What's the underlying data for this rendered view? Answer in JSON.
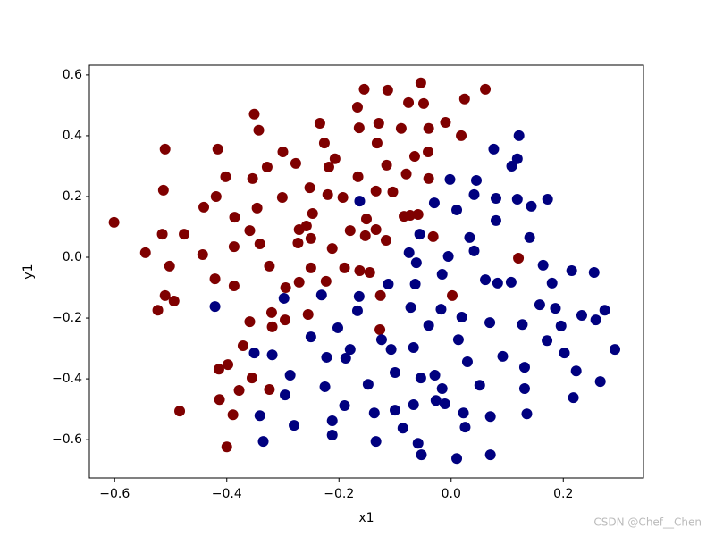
{
  "chart_data": {
    "type": "scatter",
    "x_label": "x1",
    "y_label": "y1",
    "watermark": "CSDN @Chef__Chen",
    "xlim": [
      -0.645,
      0.343
    ],
    "ylim": [
      -0.726,
      0.632
    ],
    "xticks": [
      {
        "value": -0.6,
        "label": "−0.6"
      },
      {
        "value": -0.4,
        "label": "−0.4"
      },
      {
        "value": -0.2,
        "label": "−0.2"
      },
      {
        "value": 0,
        "label": "0.0"
      },
      0.2
    ],
    "yticks": [
      {
        "value": -0.6,
        "label": "−0.6"
      },
      {
        "value": -0.4,
        "label": "−0.4"
      },
      {
        "value": -0.2,
        "label": "−0.2"
      },
      {
        "value": 0,
        "label": "0.0"
      },
      0.2,
      0.4,
      0.6
    ],
    "series": [
      {
        "color": "#7f0000",
        "x": [
          -0.601,
          -0.545,
          -0.51,
          -0.513,
          -0.515,
          -0.502,
          -0.476,
          -0.51,
          -0.523,
          -0.494,
          -0.484,
          -0.441,
          -0.443,
          -0.419,
          -0.416,
          -0.421,
          -0.414,
          -0.413,
          -0.402,
          -0.4,
          -0.398,
          -0.387,
          -0.387,
          -0.386,
          -0.389,
          -0.378,
          -0.371,
          -0.354,
          -0.359,
          -0.359,
          -0.355,
          -0.351,
          -0.343,
          -0.346,
          -0.341,
          -0.328,
          -0.324,
          -0.32,
          -0.319,
          -0.324,
          -0.301,
          -0.3,
          -0.295,
          -0.296,
          -0.277,
          -0.273,
          -0.271,
          -0.271,
          -0.258,
          -0.255,
          -0.252,
          -0.25,
          -0.25,
          -0.247,
          -0.234,
          -0.226,
          -0.223,
          -0.22,
          -0.218,
          -0.212,
          -0.207,
          -0.193,
          -0.19,
          -0.18,
          -0.167,
          -0.164,
          -0.166,
          -0.163,
          -0.155,
          -0.151,
          -0.153,
          -0.145,
          -0.134,
          -0.132,
          -0.134,
          -0.129,
          -0.127,
          -0.126,
          -0.116,
          -0.115,
          -0.113,
          -0.104,
          -0.089,
          -0.084,
          -0.08,
          -0.076,
          -0.073,
          -0.065,
          -0.059,
          -0.054,
          -0.049,
          -0.041,
          -0.04,
          -0.04,
          -0.032,
          -0.01,
          0.002,
          0.018,
          0.024,
          0.061,
          0.12
        ],
        "y": [
          0.115,
          0.015,
          0.356,
          0.221,
          0.076,
          -0.029,
          0.076,
          -0.126,
          -0.174,
          -0.144,
          -0.506,
          0.165,
          0.009,
          0.2,
          0.356,
          -0.071,
          -0.368,
          -0.468,
          0.265,
          -0.624,
          -0.353,
          0.035,
          -0.094,
          0.132,
          -0.518,
          -0.438,
          -0.291,
          0.259,
          0.088,
          -0.212,
          -0.397,
          0.471,
          0.418,
          0.162,
          0.044,
          0.297,
          -0.029,
          -0.182,
          -0.229,
          -0.435,
          0.197,
          0.347,
          -0.1,
          -0.206,
          0.309,
          0.047,
          0.091,
          -0.082,
          0.103,
          -0.188,
          0.229,
          0.062,
          -0.035,
          0.144,
          0.441,
          0.376,
          -0.079,
          0.206,
          0.297,
          0.029,
          0.324,
          0.197,
          -0.035,
          0.088,
          0.494,
          0.426,
          0.265,
          -0.044,
          0.553,
          0.126,
          0.071,
          -0.05,
          0.091,
          0.376,
          0.218,
          0.441,
          -0.238,
          -0.126,
          0.056,
          0.303,
          0.55,
          0.215,
          0.424,
          0.135,
          0.274,
          0.509,
          0.138,
          0.332,
          0.141,
          0.574,
          0.506,
          0.347,
          0.259,
          0.424,
          0.068,
          0.444,
          -0.126,
          0.4,
          0.521,
          0.553,
          -0.003
        ]
      },
      {
        "color": "#00007f",
        "x": [
          -0.421,
          -0.351,
          -0.335,
          -0.341,
          -0.319,
          -0.298,
          -0.296,
          -0.287,
          -0.28,
          -0.231,
          -0.25,
          -0.222,
          -0.225,
          -0.212,
          -0.212,
          -0.202,
          -0.19,
          -0.188,
          -0.18,
          -0.167,
          -0.164,
          -0.163,
          -0.148,
          -0.137,
          -0.134,
          -0.124,
          -0.112,
          -0.107,
          -0.1,
          -0.1,
          -0.086,
          -0.075,
          -0.072,
          -0.067,
          -0.067,
          -0.064,
          -0.062,
          -0.059,
          -0.056,
          -0.054,
          -0.053,
          -0.04,
          -0.03,
          -0.029,
          -0.027,
          -0.016,
          -0.018,
          -0.016,
          -0.011,
          -0.005,
          -0.002,
          0.01,
          0.013,
          0.01,
          0.019,
          0.022,
          0.025,
          0.029,
          0.033,
          0.041,
          0.045,
          0.041,
          0.051,
          0.061,
          0.07,
          0.069,
          0.07,
          0.076,
          0.08,
          0.08,
          0.083,
          0.092,
          0.107,
          0.108,
          0.118,
          0.118,
          0.121,
          0.127,
          0.131,
          0.131,
          0.135,
          0.14,
          0.143,
          0.158,
          0.164,
          0.171,
          0.172,
          0.18,
          0.186,
          0.196,
          0.202,
          0.215,
          0.218,
          0.223,
          0.233,
          0.255,
          0.258,
          0.266,
          0.274,
          0.292
        ],
        "y": [
          -0.162,
          -0.315,
          -0.606,
          -0.521,
          -0.321,
          -0.135,
          -0.453,
          -0.388,
          -0.553,
          -0.124,
          -0.262,
          -0.329,
          -0.426,
          -0.538,
          -0.585,
          -0.232,
          -0.488,
          -0.332,
          -0.303,
          -0.176,
          -0.129,
          0.185,
          -0.418,
          -0.512,
          -0.606,
          -0.271,
          -0.088,
          -0.303,
          -0.379,
          -0.503,
          -0.562,
          0.015,
          -0.165,
          -0.297,
          -0.485,
          -0.088,
          -0.018,
          -0.612,
          0.076,
          -0.397,
          -0.65,
          -0.224,
          0.179,
          -0.388,
          -0.471,
          -0.432,
          -0.171,
          -0.056,
          -0.482,
          0.003,
          0.256,
          0.156,
          -0.271,
          -0.662,
          -0.197,
          -0.512,
          -0.559,
          -0.344,
          0.065,
          0.021,
          0.253,
          0.206,
          -0.421,
          -0.074,
          -0.524,
          -0.215,
          -0.65,
          0.356,
          0.194,
          0.121,
          -0.085,
          -0.326,
          -0.082,
          0.3,
          0.324,
          0.191,
          0.4,
          -0.221,
          -0.362,
          -0.432,
          -0.515,
          0.065,
          0.168,
          -0.156,
          -0.026,
          -0.274,
          0.191,
          -0.085,
          -0.168,
          -0.226,
          -0.315,
          -0.044,
          -0.462,
          -0.374,
          -0.191,
          -0.05,
          -0.206,
          -0.409,
          -0.174,
          -0.303
        ]
      }
    ]
  }
}
